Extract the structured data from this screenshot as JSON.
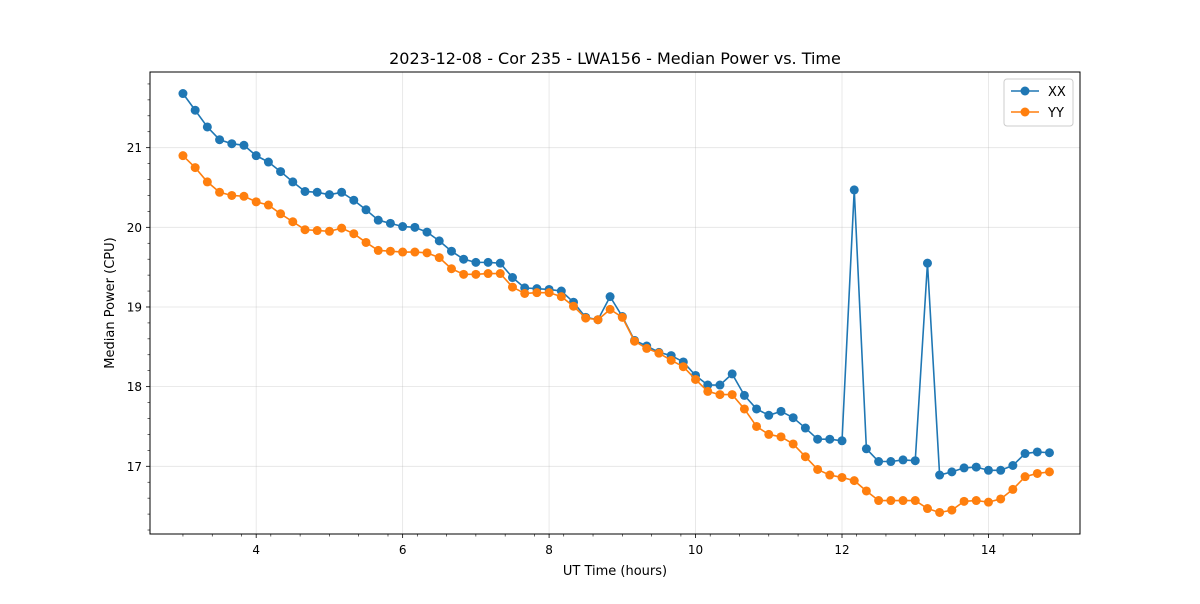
{
  "chart_data": {
    "type": "line",
    "title": "2023-12-08 - Cor 235 - LWA156 - Median Power vs. Time",
    "xlabel": "UT Time (hours)",
    "ylabel": "Median Power (CPU)",
    "xlim": [
      2.55,
      15.25
    ],
    "ylim": [
      16.15,
      21.95
    ],
    "xticks": [
      4,
      6,
      8,
      10,
      12,
      14
    ],
    "yticks": [
      17,
      18,
      19,
      20,
      21
    ],
    "grid": true,
    "legend_position": "top-right",
    "x": [
      3.0,
      3.167,
      3.333,
      3.5,
      3.667,
      3.833,
      4.0,
      4.167,
      4.333,
      4.5,
      4.667,
      4.833,
      5.0,
      5.167,
      5.333,
      5.5,
      5.667,
      5.833,
      6.0,
      6.167,
      6.333,
      6.5,
      6.667,
      6.833,
      7.0,
      7.167,
      7.333,
      7.5,
      7.667,
      7.833,
      8.0,
      8.167,
      8.333,
      8.5,
      8.667,
      8.833,
      9.0,
      9.167,
      9.333,
      9.5,
      9.667,
      9.833,
      10.0,
      10.167,
      10.333,
      10.5,
      10.667,
      10.833,
      11.0,
      11.167,
      11.333,
      11.5,
      11.667,
      11.833,
      12.0,
      12.167,
      12.333,
      12.5,
      12.667,
      12.833,
      13.0,
      13.167,
      13.333,
      13.5,
      13.667,
      13.833,
      14.0,
      14.167,
      14.333,
      14.5,
      14.667,
      14.833
    ],
    "series": [
      {
        "name": "XX",
        "color": "#1f77b4",
        "values": [
          21.68,
          21.47,
          21.26,
          21.1,
          21.05,
          21.03,
          20.9,
          20.82,
          20.7,
          20.57,
          20.45,
          20.44,
          20.41,
          20.44,
          20.34,
          20.22,
          20.09,
          20.05,
          20.01,
          20.0,
          19.94,
          19.83,
          19.7,
          19.6,
          19.56,
          19.56,
          19.55,
          19.37,
          19.24,
          19.23,
          19.22,
          19.2,
          19.06,
          18.87,
          18.84,
          19.13,
          18.88,
          18.58,
          18.51,
          18.43,
          18.39,
          18.31,
          18.14,
          18.02,
          18.02,
          18.16,
          17.89,
          17.72,
          17.64,
          17.69,
          17.61,
          17.48,
          17.34,
          17.34,
          17.32,
          20.47,
          17.22,
          17.06,
          17.06,
          17.08,
          17.07,
          19.55,
          16.89,
          16.93,
          16.98,
          16.99,
          16.95,
          16.95,
          17.01,
          17.16,
          17.18,
          17.17
        ]
      },
      {
        "name": "YY",
        "color": "#ff7f0e",
        "values": [
          20.9,
          20.75,
          20.57,
          20.44,
          20.4,
          20.39,
          20.32,
          20.28,
          20.17,
          20.07,
          19.97,
          19.96,
          19.95,
          19.99,
          19.92,
          19.81,
          19.71,
          19.7,
          19.69,
          19.69,
          19.68,
          19.62,
          19.48,
          19.41,
          19.41,
          19.42,
          19.42,
          19.25,
          19.17,
          19.18,
          19.18,
          19.13,
          19.01,
          18.86,
          18.84,
          18.97,
          18.87,
          18.57,
          18.48,
          18.42,
          18.33,
          18.25,
          18.09,
          17.94,
          17.9,
          17.9,
          17.72,
          17.5,
          17.4,
          17.37,
          17.28,
          17.12,
          16.96,
          16.89,
          16.86,
          16.82,
          16.69,
          16.57,
          16.57,
          16.57,
          16.57,
          16.47,
          16.42,
          16.45,
          16.56,
          16.57,
          16.55,
          16.59,
          16.71,
          16.87,
          16.91,
          16.93
        ]
      }
    ]
  }
}
